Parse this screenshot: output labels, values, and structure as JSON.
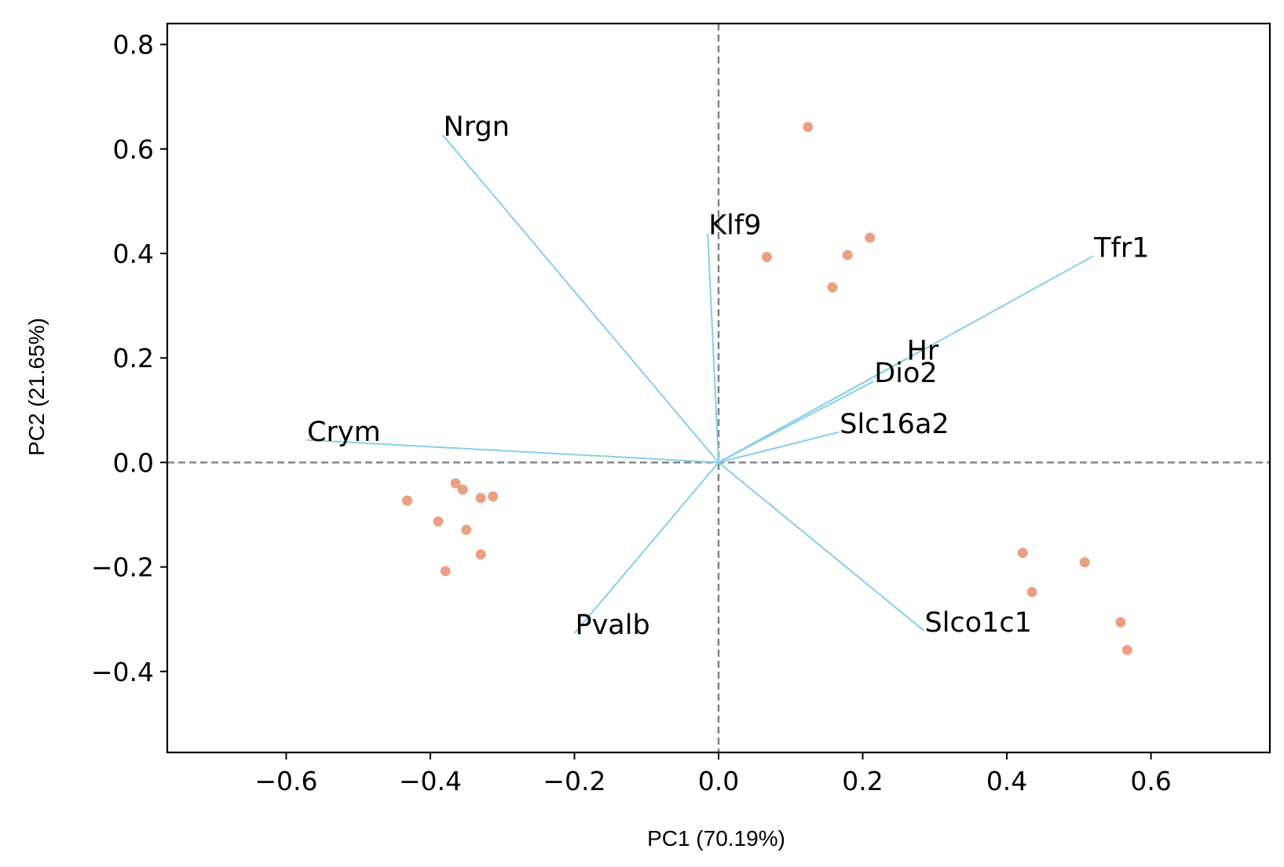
{
  "chart_data": {
    "type": "scatter",
    "xlabel": "PC1 (70.19%)",
    "ylabel": "PC2 (21.65%)",
    "xlim": [
      -0.765,
      0.765
    ],
    "ylim": [
      -0.555,
      0.84
    ],
    "xticks": [
      -0.6,
      -0.4,
      -0.2,
      0.0,
      0.2,
      0.4,
      0.6
    ],
    "yticks": [
      -0.4,
      -0.2,
      0.0,
      0.2,
      0.4,
      0.6,
      0.8
    ],
    "xtick_labels": [
      "−0.6",
      "−0.4",
      "−0.2",
      "0.0",
      "0.2",
      "0.4",
      "0.6"
    ],
    "ytick_labels": [
      "−0.4",
      "−0.2",
      "0.0",
      "0.2",
      "0.4",
      "0.6",
      "0.8"
    ],
    "grid": false,
    "reference_lines": [
      {
        "axis": "x",
        "value": 0
      },
      {
        "axis": "y",
        "value": 0
      }
    ],
    "colors": {
      "points": "#E9A083",
      "vectors": "#87CEEB",
      "reference": "#808080"
    },
    "points": [
      {
        "x": 0.124,
        "y": 0.642
      },
      {
        "x": 0.21,
        "y": 0.43
      },
      {
        "x": 0.179,
        "y": 0.397
      },
      {
        "x": 0.067,
        "y": 0.393
      },
      {
        "x": 0.158,
        "y": 0.335
      },
      {
        "x": -0.365,
        "y": -0.04
      },
      {
        "x": -0.355,
        "y": -0.052
      },
      {
        "x": -0.33,
        "y": -0.068
      },
      {
        "x": -0.313,
        "y": -0.065
      },
      {
        "x": -0.432,
        "y": -0.073
      },
      {
        "x": -0.389,
        "y": -0.113
      },
      {
        "x": -0.35,
        "y": -0.129
      },
      {
        "x": -0.33,
        "y": -0.176
      },
      {
        "x": -0.379,
        "y": -0.208
      },
      {
        "x": 0.422,
        "y": -0.173
      },
      {
        "x": 0.508,
        "y": -0.191
      },
      {
        "x": 0.435,
        "y": -0.248
      },
      {
        "x": 0.558,
        "y": -0.306
      },
      {
        "x": 0.567,
        "y": -0.359
      }
    ],
    "vectors": [
      {
        "label": "Nrgn",
        "x": -0.383,
        "y": 0.627
      },
      {
        "label": "Klf9",
        "x": -0.015,
        "y": 0.438
      },
      {
        "label": "Tfr1",
        "x": 0.52,
        "y": 0.395
      },
      {
        "label": "Hr",
        "x": 0.26,
        "y": 0.198
      },
      {
        "label": "Dio2",
        "x": 0.215,
        "y": 0.155
      },
      {
        "label": "Slc16a2",
        "x": 0.167,
        "y": 0.058
      },
      {
        "label": "Crym",
        "x": -0.572,
        "y": 0.043
      },
      {
        "label": "Pvalb",
        "x": -0.2,
        "y": -0.327
      },
      {
        "label": "Slco1c1",
        "x": 0.285,
        "y": -0.322
      }
    ]
  }
}
